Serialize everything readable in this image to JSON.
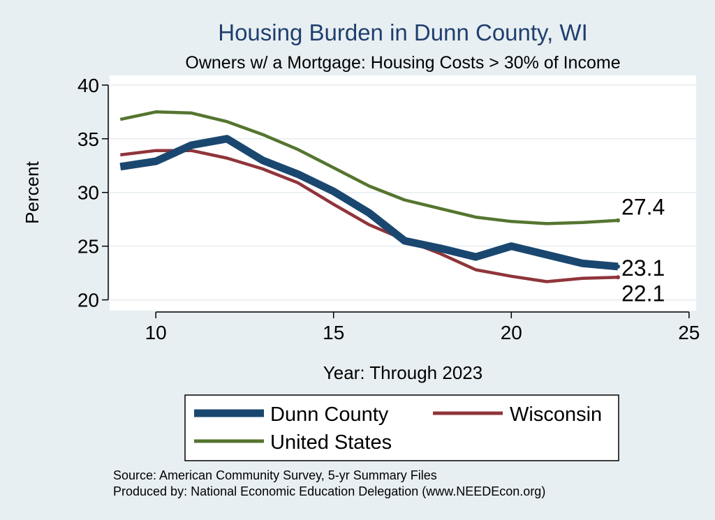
{
  "chart_data": {
    "type": "line",
    "title": "Housing Burden in Dunn County, WI",
    "subtitle": "Owners w/ a Mortgage: Housing Costs > 30% of Income",
    "xlabel": "Year: Through 2023",
    "ylabel": "Percent",
    "xlim": [
      8.7,
      25.2
    ],
    "ylim": [
      19.0,
      40.9
    ],
    "xticks": [
      10,
      15,
      20,
      25
    ],
    "yticks": [
      20,
      25,
      30,
      35,
      40
    ],
    "grid": true,
    "legend_position": "bottom",
    "x": [
      9,
      10,
      11,
      12,
      13,
      14,
      15,
      16,
      17,
      18,
      19,
      20,
      21,
      22,
      23
    ],
    "series": [
      {
        "name": "Dunn County",
        "color": "#1a476f",
        "values": [
          32.4,
          32.9,
          34.4,
          35.0,
          33.0,
          31.7,
          30.1,
          28.1,
          25.5,
          24.8,
          24.0,
          25.0,
          24.2,
          23.4,
          23.1
        ],
        "end_label": "23.1"
      },
      {
        "name": "Wisconsin",
        "color": "#90353b",
        "values": [
          33.5,
          33.9,
          33.9,
          33.2,
          32.2,
          30.9,
          28.9,
          27.0,
          25.6,
          24.3,
          22.8,
          22.2,
          21.7,
          22.0,
          22.1
        ],
        "end_label": "22.1"
      },
      {
        "name": "United States",
        "color": "#55752f",
        "values": [
          36.8,
          37.5,
          37.4,
          36.6,
          35.4,
          34.0,
          32.3,
          30.6,
          29.3,
          28.5,
          27.7,
          27.3,
          27.1,
          27.2,
          27.4
        ],
        "end_label": "27.4"
      }
    ]
  },
  "notes": {
    "source": "Source: American Community Survey, 5-yr Summary Files",
    "produced": "Produced by: National Economic Education Delegation (www.NEEDEcon.org)"
  }
}
